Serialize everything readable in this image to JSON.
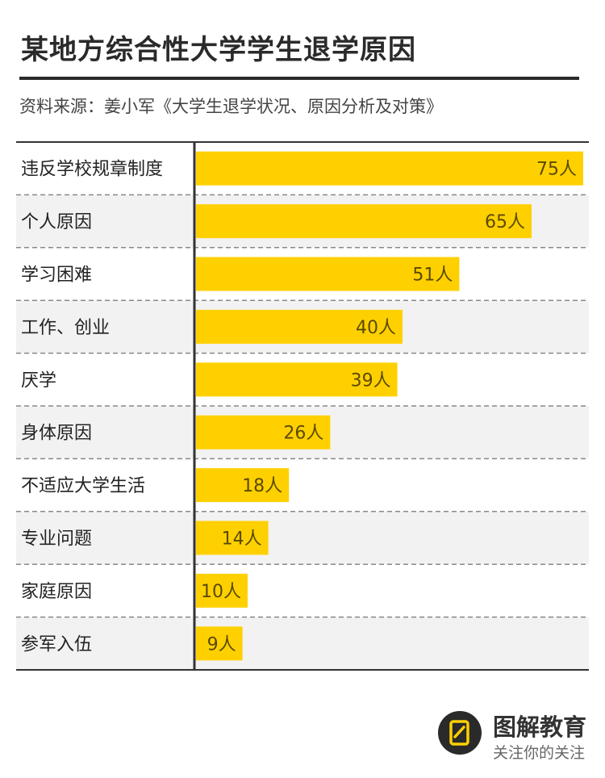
{
  "header": {
    "title": "某地方综合性大学学生退学原因",
    "source": "资料来源：姜小军《大学生退学状况、原因分析及对策》"
  },
  "brand": {
    "name": "图解教育",
    "tagline": "关注你的关注",
    "icon": "logo-icon"
  },
  "colors": {
    "bar": "#FFD000",
    "band": "#F2F2F2",
    "axis": "#333333",
    "divider": "#888888",
    "text": "#222222"
  },
  "chart_data": {
    "type": "bar",
    "orientation": "horizontal",
    "categories": [
      "违反学校规章制度",
      "个人原因",
      "学习困难",
      "工作、创业",
      "厌学",
      "身体原因",
      "不适应大学生活",
      "专业问题",
      "家庭原因",
      "参军入伍"
    ],
    "values": [
      75,
      65,
      51,
      40,
      39,
      26,
      18,
      14,
      10,
      9
    ],
    "labels": [
      "75人",
      "65人",
      "51人",
      "40人",
      "39人",
      "26人",
      "18人",
      "14人",
      "10人",
      "9人"
    ],
    "title": "某地方综合性大学学生退学原因",
    "xlim": [
      0,
      75
    ],
    "grid": false,
    "legend": "none"
  }
}
